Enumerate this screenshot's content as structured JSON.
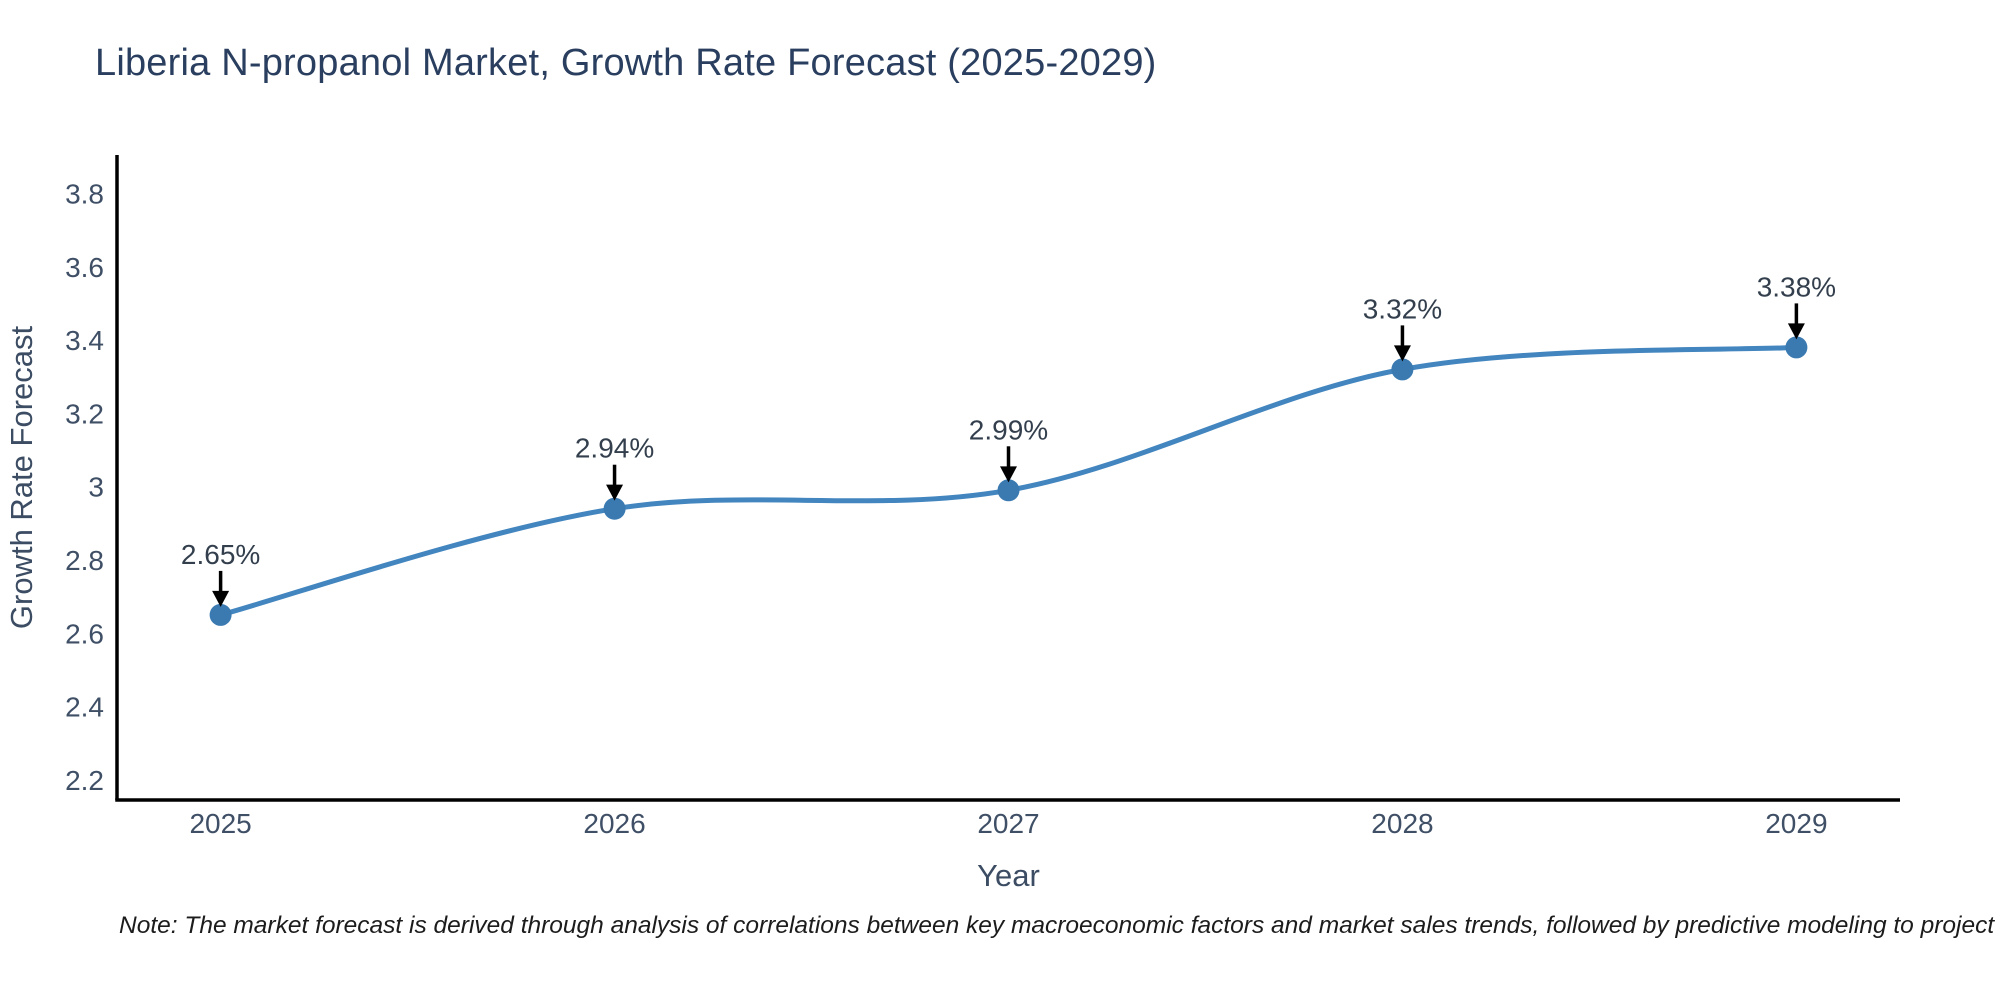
{
  "title": "Liberia N-propanol Market, Growth Rate Forecast (2025-2029)",
  "note": "Note: The market forecast is derived through analysis of correlations between key macroeconomic factors and market sales trends, followed by predictive modeling to project future sales",
  "chart_data": {
    "type": "line",
    "title": "Liberia N-propanol Market, Growth Rate Forecast (2025-2029)",
    "xlabel": "Year",
    "ylabel": "Growth Rate Forecast",
    "x": [
      2025,
      2026,
      2027,
      2028,
      2029
    ],
    "series": [
      {
        "name": "Growth Rate Forecast",
        "values": [
          2.65,
          2.94,
          2.99,
          3.32,
          3.38
        ]
      }
    ],
    "point_labels": [
      "2.65%",
      "2.94%",
      "2.99%",
      "3.32%",
      "3.38%"
    ],
    "xtick_labels": [
      "2025",
      "2026",
      "2027",
      "2028",
      "2029"
    ],
    "ytick_values": [
      2.2,
      2.4,
      2.6,
      2.8,
      3,
      3.2,
      3.4,
      3.6,
      3.8
    ],
    "ytick_labels": [
      "2.2",
      "2.4",
      "2.6",
      "2.8",
      "3",
      "3.2",
      "3.4",
      "3.6",
      "3.8"
    ],
    "xlim": [
      2024.737,
      2029.263
    ],
    "ylim": [
      2.145,
      3.905
    ],
    "line_shape": "spline",
    "grid": false,
    "legend": false,
    "annotation_arrows": "black-down-arrow-to-point"
  },
  "colors": {
    "background": "#ffffff",
    "line": "#4285bf",
    "marker": "#3a7ab1",
    "axis": "#000000",
    "title_text": "#2a3f5f",
    "tick_text": "#3f4f66",
    "axis_title_text": "#3b4c63",
    "annotation_text": "#333f4d",
    "arrow": "#000000",
    "note_text": "#1c1c1c"
  }
}
